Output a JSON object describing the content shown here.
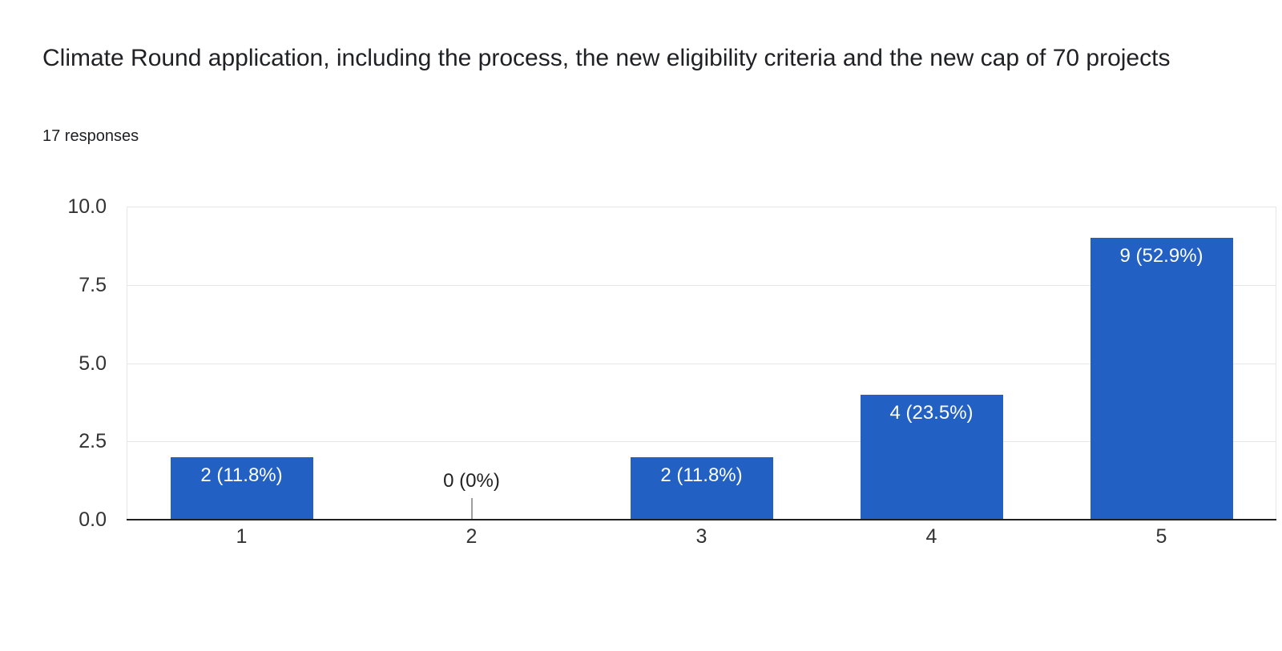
{
  "header": {
    "title": "Climate Round application, including the process, the new eligibility criteria and the new cap of 70 projects",
    "responses_label": "17 responses"
  },
  "chart_data": {
    "type": "bar",
    "title": "Climate Round application, including the process, the new eligibility criteria and the new cap of 70 projects",
    "subtitle": "17 responses",
    "total_responses": 17,
    "categories": [
      "1",
      "2",
      "3",
      "4",
      "5"
    ],
    "values": [
      2,
      0,
      2,
      4,
      9
    ],
    "bar_labels": [
      "2 (11.8%)",
      "0 (0%)",
      "2 (11.8%)",
      "4 (23.5%)",
      "9 (52.9%)"
    ],
    "xlabel": "",
    "ylabel": "",
    "ylim": [
      0,
      10
    ],
    "yticks": [
      {
        "value": 0,
        "label": "0.0"
      },
      {
        "value": 2.5,
        "label": "2.5"
      },
      {
        "value": 5,
        "label": "5.0"
      },
      {
        "value": 7.5,
        "label": "7.5"
      },
      {
        "value": 10,
        "label": "10.0"
      }
    ],
    "grid": true,
    "legend": "none",
    "colors": {
      "bar": "#2260c4",
      "bar_label_text": "#ffffff",
      "zero_label_text": "#212121",
      "zero_stem": "#9e9e9e",
      "gridline": "#e6e6e6",
      "axis_baseline": "#212121",
      "title_text": "#202124",
      "tick_text": "#333333"
    }
  }
}
